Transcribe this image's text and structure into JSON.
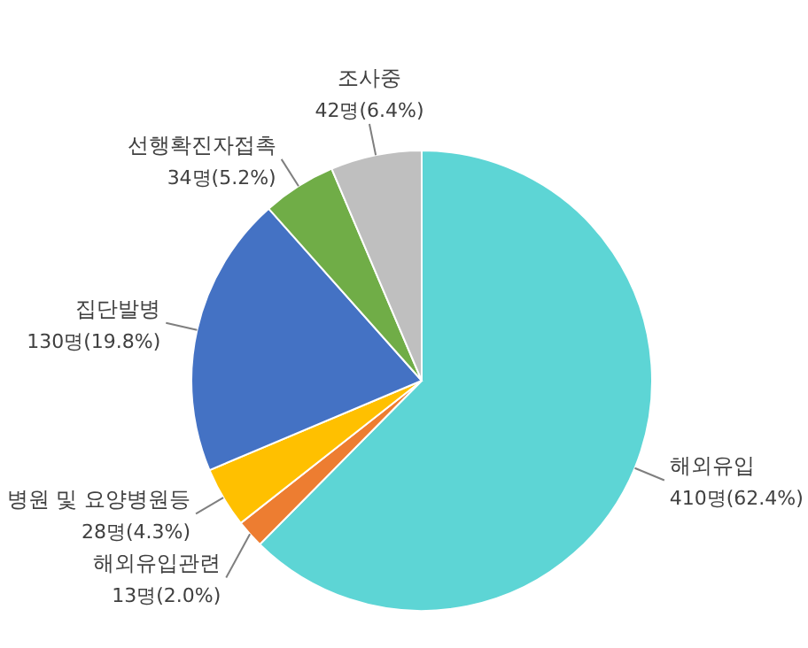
{
  "chart_data": {
    "type": "pie",
    "categories": [
      "해외유입",
      "해외유입관련",
      "병원 및 요양병원등",
      "집단발병",
      "선행확진자접촉",
      "조사중"
    ],
    "values": [
      410,
      13,
      28,
      130,
      34,
      42
    ],
    "colors": [
      "#5dd5d5",
      "#ed7d31",
      "#ffc000",
      "#4472c4",
      "#70ad47",
      "#bfbfbf"
    ],
    "value_labels": [
      "410명(62.4%)",
      "13명(2.0%)",
      "28명(4.3%)",
      "130명(19.8%)",
      "34명(5.2%)",
      "42명(6.4%)"
    ]
  }
}
